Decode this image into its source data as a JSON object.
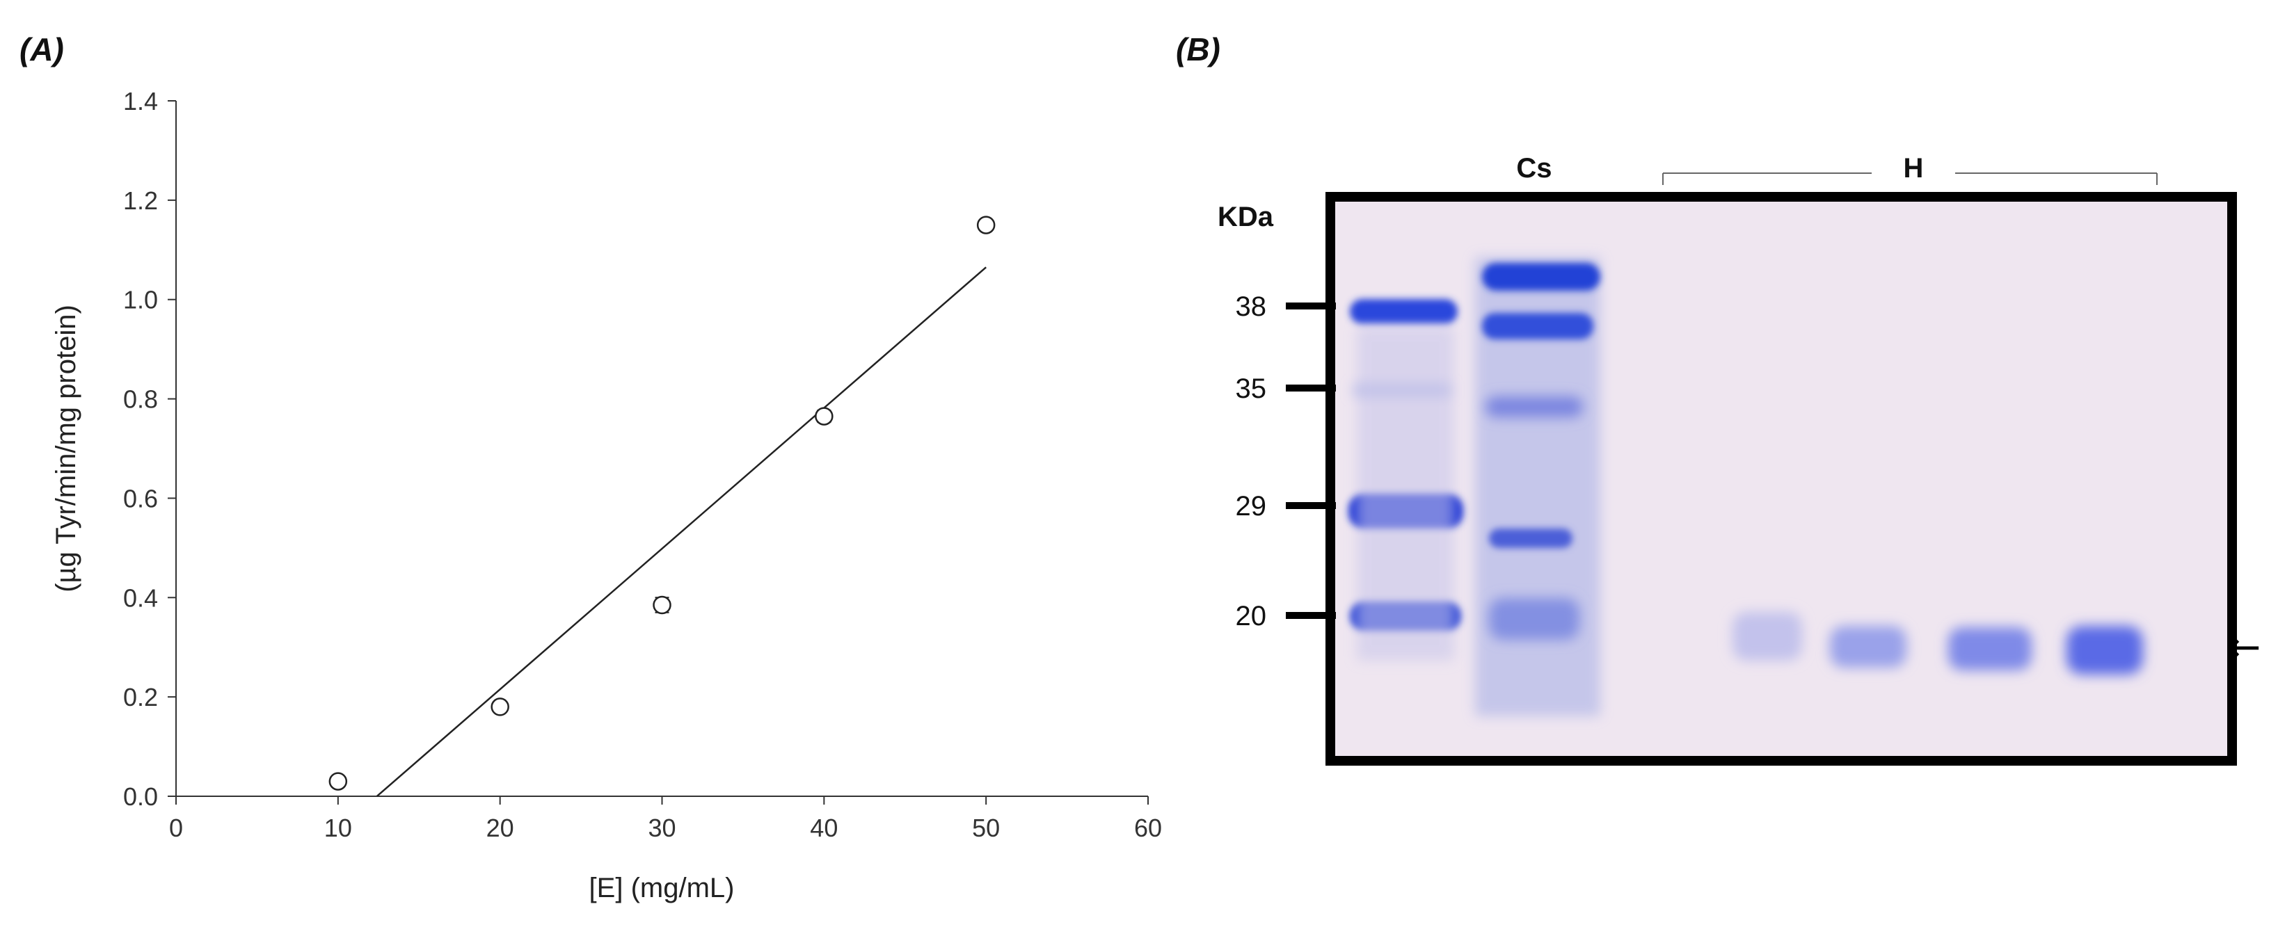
{
  "panels": {
    "a_label": "(A)",
    "b_label": "(B)"
  },
  "chart_data": {
    "type": "scatter",
    "xlabel": "[E] (mg/mL)",
    "ylabel": "(µg Tyr/min/mg protein)",
    "xlim": [
      0,
      60
    ],
    "ylim": [
      0,
      1.4
    ],
    "xticks": [
      0,
      10,
      20,
      30,
      40,
      50,
      60
    ],
    "yticks": [
      "0.0",
      "0.2",
      "0.4",
      "0.6",
      "0.8",
      "1.0",
      "1.2",
      "1.4"
    ],
    "points": [
      {
        "x": 10,
        "y": 0.03,
        "err": 0.01
      },
      {
        "x": 20,
        "y": 0.18,
        "err": 0.01
      },
      {
        "x": 30,
        "y": 0.385,
        "err": 0.015
      },
      {
        "x": 40,
        "y": 0.765,
        "err": 0.012
      },
      {
        "x": 50,
        "y": 1.15,
        "err": 0.01
      }
    ],
    "fit_line": {
      "x_start": 12.4,
      "y_start": 0.0,
      "x_end": 50,
      "y_end": 1.065
    },
    "grid": false
  },
  "gel": {
    "unit_label": "KDa",
    "lane_cs": "Cs",
    "lane_h": "H",
    "markers": [
      {
        "label": "38",
        "kda": 38
      },
      {
        "label": "35",
        "kda": 35
      },
      {
        "label": "29",
        "kda": 29
      },
      {
        "label": "20",
        "kda": 20
      }
    ],
    "arrow_symbol": "←",
    "colors": {
      "background": "#efe6f0",
      "band": "#1f3fd6",
      "frame": "#000000"
    }
  }
}
